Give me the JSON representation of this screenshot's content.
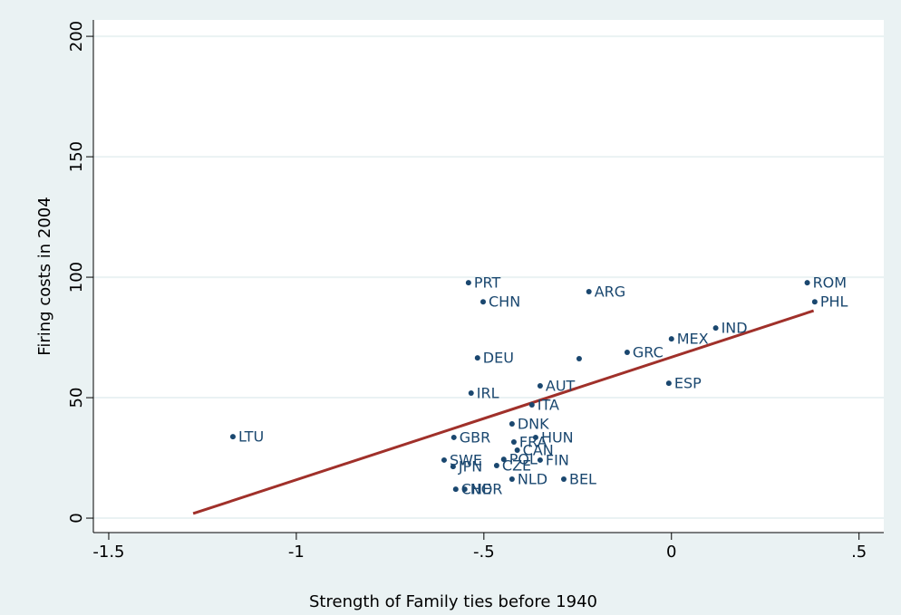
{
  "chart_data": {
    "type": "scatter",
    "xlabel": "Strength of Family ties before 1940",
    "ylabel": "Firing costs in 2004",
    "labels": [
      "PRT",
      "CHN",
      "ARG",
      "ROM",
      "PHL",
      "IND",
      "MEX",
      "GRC",
      null,
      "DEU",
      "ESP",
      "AUT",
      "IRL",
      "ITA",
      "DNK",
      "LTU",
      "GBR",
      "HUN",
      "FRA",
      "CAN",
      "POL",
      "FIN",
      "SWE",
      "JPN",
      "CZE",
      "NLD",
      "BEL",
      "CHE",
      "NOR"
    ],
    "x": [
      -0.541,
      -0.502,
      -0.22,
      0.362,
      0.382,
      0.118,
      0.0,
      -0.118,
      -0.246,
      -0.517,
      -0.007,
      -0.35,
      -0.534,
      -0.372,
      -0.425,
      -1.169,
      -0.58,
      -0.362,
      -0.42,
      -0.411,
      -0.447,
      -0.35,
      -0.606,
      -0.582,
      -0.466,
      -0.425,
      -0.287,
      -0.575,
      -0.551
    ],
    "values": [
      97.7,
      89.8,
      94.0,
      97.7,
      89.8,
      78.9,
      74.4,
      68.8,
      66.2,
      66.5,
      56.0,
      54.9,
      51.9,
      47.0,
      39.1,
      33.8,
      33.5,
      33.5,
      31.6,
      28.2,
      24.4,
      24.1,
      24.1,
      21.4,
      21.8,
      16.2,
      16.2,
      12.0,
      12.0
    ],
    "color": "#1a476f",
    "fit": {
      "x": [
        -1.275,
        0.379
      ],
      "values": [
        1.9,
        86.1
      ],
      "color": "#a0302a"
    },
    "xlim": [
      -1.541,
      0.566
    ],
    "ylim": [
      -6,
      206.8
    ],
    "xticks": [
      -1.5,
      -1,
      {
        "value": -0.5,
        "label": "-.5"
      },
      0,
      {
        "value": 0.5,
        "label": ".5"
      }
    ],
    "yticks": [
      0,
      50,
      100,
      150,
      200
    ],
    "grid": true
  }
}
